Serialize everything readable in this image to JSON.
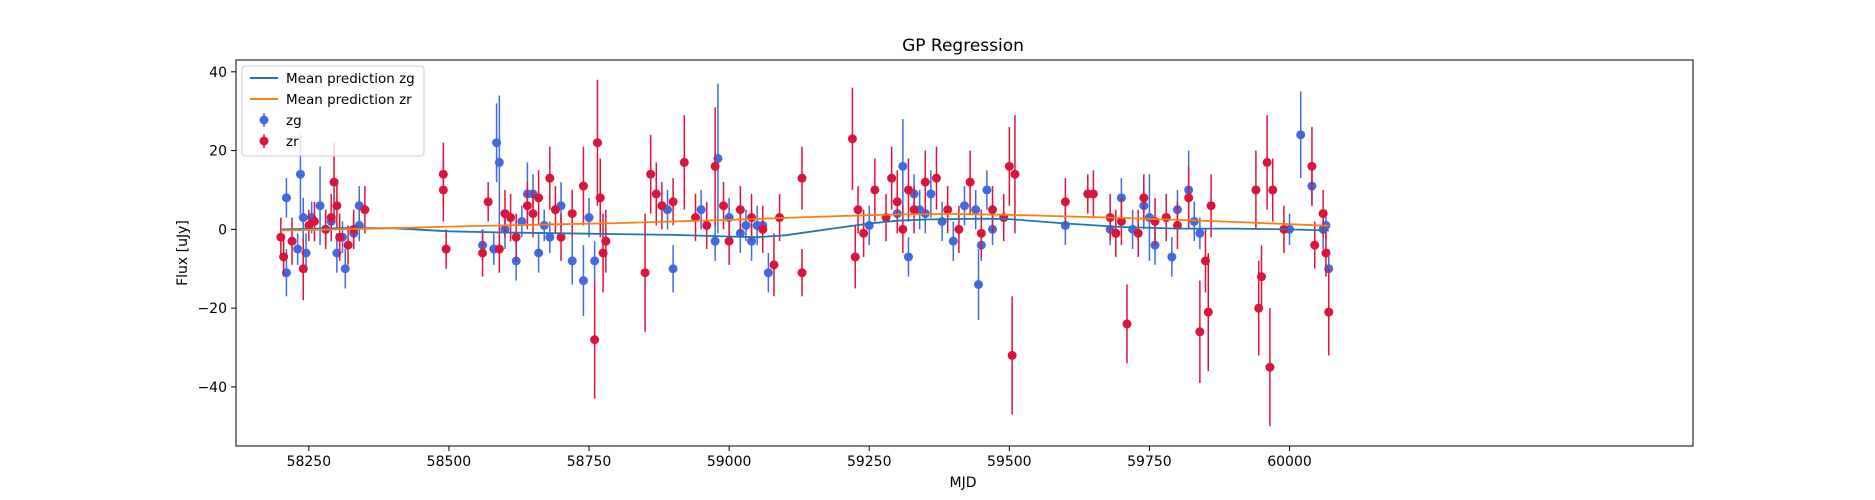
{
  "chart_data": {
    "type": "scatter",
    "title": "GP Regression",
    "xlabel": "MJD",
    "ylabel": "Flux [uJy]",
    "xlim": [
      58120,
      60720
    ],
    "ylim": [
      -55,
      43
    ],
    "xticks": [
      58250,
      58500,
      58750,
      59000,
      59250,
      59500,
      59750,
      60000
    ],
    "yticks": [
      -40,
      -20,
      0,
      20,
      40
    ],
    "grid": false,
    "legend_position": "top-left",
    "legend": [
      "Mean prediction zg",
      "Mean prediction zr",
      "zg",
      "zr"
    ],
    "colors": {
      "line_zg": "#1f77b4",
      "line_zr": "#ff7f0e",
      "points_zg": "#4169e1",
      "points_zr": "#dc143c"
    },
    "lines": [
      {
        "name": "Mean prediction zg",
        "color": "#1f77b4",
        "x": [
          58200,
          58300,
          58400,
          58500,
          58600,
          58700,
          58750,
          58800,
          58900,
          59000,
          59050,
          59100,
          59150,
          59200,
          59250,
          59300,
          59350,
          59400,
          59450,
          59500,
          59600,
          59700,
          59800,
          59900,
          60000,
          60070
        ],
        "y": [
          0.0,
          0.3,
          0.3,
          -0.5,
          -0.8,
          -1.0,
          -1.1,
          -1.2,
          -1.4,
          -1.8,
          -2.0,
          -1.5,
          -0.5,
          0.5,
          1.5,
          2.2,
          2.5,
          2.6,
          2.7,
          2.6,
          1.5,
          0.6,
          0.2,
          0.2,
          0.0,
          -0.3
        ]
      },
      {
        "name": "Mean prediction zr",
        "color": "#ff7f0e",
        "x": [
          58200,
          58300,
          58400,
          58500,
          58600,
          58700,
          58800,
          58900,
          59000,
          59100,
          59200,
          59300,
          59400,
          59500,
          59600,
          59700,
          59800,
          59900,
          60000,
          60070
        ],
        "y": [
          -0.3,
          0.0,
          0.3,
          0.7,
          1.0,
          1.3,
          1.6,
          2.0,
          2.4,
          2.9,
          3.4,
          3.8,
          3.9,
          3.7,
          3.3,
          2.9,
          2.4,
          1.9,
          1.3,
          0.9
        ]
      }
    ],
    "points": [
      {
        "name": "zg",
        "color": "#4169e1",
        "x": [
          58210,
          58210,
          58230,
          58235,
          58240,
          58245,
          58255,
          58270,
          58280,
          58290,
          58300,
          58310,
          58315,
          58330,
          58340,
          58340,
          58560,
          58580,
          58585,
          58590,
          58600,
          58620,
          58630,
          58640,
          58650,
          58660,
          58670,
          58680,
          58700,
          58720,
          58740,
          58750,
          58760,
          58890,
          58900,
          58950,
          58975,
          58980,
          59000,
          59020,
          59030,
          59040,
          59050,
          59060,
          59070,
          59250,
          59300,
          59310,
          59320,
          59330,
          59340,
          59350,
          59360,
          59380,
          59400,
          59420,
          59440,
          59445,
          59450,
          59460,
          59470,
          59600,
          59680,
          59700,
          59720,
          59740,
          59750,
          59760,
          59780,
          59790,
          59800,
          59820,
          59830,
          59840,
          60000,
          60020,
          60040,
          60060,
          60065,
          60070
        ],
        "y": [
          8,
          -11,
          -5,
          14,
          3,
          -6,
          3,
          6,
          0,
          2,
          -6,
          -2,
          -10,
          -1,
          1,
          6,
          -4,
          -5,
          22,
          17,
          0,
          -8,
          2,
          9,
          9,
          -6,
          1,
          -2,
          6,
          -8,
          -13,
          3,
          -8,
          5,
          -10,
          5,
          -3,
          18,
          3,
          -1,
          1,
          -3,
          1,
          1,
          -11,
          1,
          4,
          16,
          -7,
          9,
          5,
          4,
          9,
          2,
          -3,
          6,
          5,
          -14,
          -4,
          10,
          0,
          1,
          0,
          8,
          0,
          6,
          3,
          -4,
          3,
          -7,
          5,
          10,
          2,
          -1,
          0,
          24,
          11,
          0,
          1,
          -10
        ],
        "err": [
          5,
          6,
          4,
          10,
          5,
          5,
          4,
          10,
          4,
          5,
          5,
          4,
          5,
          4,
          4,
          5,
          4,
          4,
          10,
          17,
          5,
          5,
          4,
          8,
          5,
          5,
          4,
          4,
          6,
          6,
          9,
          5,
          5,
          5,
          6,
          5,
          5,
          19,
          5,
          5,
          4,
          5,
          5,
          4,
          5,
          5,
          5,
          12,
          5,
          5,
          5,
          5,
          6,
          5,
          5,
          5,
          5,
          9,
          4,
          5,
          4,
          5,
          4,
          5,
          5,
          6,
          11,
          5,
          5,
          5,
          5,
          10,
          5,
          4,
          4,
          11,
          5,
          5,
          4,
          5
        ]
      },
      {
        "name": "zr",
        "color": "#dc143c",
        "x": [
          58200,
          58205,
          58220,
          58240,
          58250,
          58260,
          58280,
          58290,
          58295,
          58300,
          58305,
          58320,
          58330,
          58350,
          58490,
          58490,
          58495,
          58560,
          58570,
          58590,
          58600,
          58610,
          58620,
          58640,
          58650,
          58660,
          58680,
          58690,
          58700,
          58720,
          58740,
          58760,
          58765,
          58770,
          58775,
          58780,
          58850,
          58860,
          58870,
          58880,
          58900,
          58920,
          58940,
          58960,
          58975,
          58990,
          59000,
          59020,
          59040,
          59060,
          59080,
          59090,
          59130,
          59130,
          59220,
          59225,
          59230,
          59240,
          59260,
          59280,
          59290,
          59300,
          59310,
          59320,
          59330,
          59350,
          59370,
          59390,
          59410,
          59430,
          59450,
          59470,
          59490,
          59500,
          59505,
          59510,
          59600,
          59640,
          59650,
          59680,
          59690,
          59700,
          59710,
          59730,
          59740,
          59760,
          59780,
          59800,
          59820,
          59840,
          59850,
          59855,
          59860,
          59940,
          59945,
          59950,
          59960,
          59965,
          59970,
          59990,
          60040,
          60045,
          60060,
          60065,
          60070
        ],
        "y": [
          -2,
          -7,
          -3,
          -10,
          1,
          2,
          0,
          3,
          12,
          6,
          -2,
          -4,
          0,
          5,
          14,
          10,
          -5,
          -6,
          7,
          -5,
          4,
          3,
          -2,
          6,
          4,
          8,
          13,
          5,
          -2,
          4,
          11,
          -28,
          22,
          8,
          -6,
          -3,
          -11,
          14,
          9,
          6,
          7,
          17,
          3,
          1,
          16,
          6,
          -3,
          5,
          3,
          0,
          -9,
          3,
          13,
          -11,
          23,
          -7,
          5,
          -1,
          10,
          3,
          13,
          7,
          0,
          10,
          5,
          12,
          13,
          5,
          0,
          12,
          -1,
          5,
          3,
          16,
          -32,
          14,
          7,
          9,
          9,
          3,
          -1,
          2,
          -24,
          -1,
          8,
          2,
          3,
          1,
          8,
          -26,
          -8,
          -21,
          6,
          10,
          -20,
          -12,
          17,
          -35,
          10,
          0,
          16,
          -4,
          4,
          -6,
          -21
        ],
        "err": [
          5,
          5,
          6,
          8,
          4,
          5,
          5,
          6,
          10,
          6,
          6,
          5,
          5,
          6,
          8,
          8,
          5,
          6,
          5,
          6,
          6,
          6,
          6,
          6,
          6,
          7,
          8,
          6,
          6,
          6,
          10,
          15,
          16,
          10,
          10,
          8,
          15,
          10,
          8,
          6,
          6,
          12,
          6,
          6,
          15,
          6,
          6,
          6,
          6,
          6,
          8,
          6,
          8,
          6,
          13,
          8,
          6,
          6,
          8,
          6,
          8,
          8,
          6,
          8,
          6,
          8,
          8,
          6,
          6,
          8,
          6,
          6,
          6,
          10,
          15,
          15,
          6,
          5,
          6,
          6,
          6,
          6,
          10,
          6,
          6,
          6,
          6,
          6,
          8,
          13,
          8,
          15,
          8,
          10,
          12,
          8,
          12,
          15,
          8,
          6,
          10,
          6,
          6,
          6,
          11
        ]
      }
    ]
  }
}
